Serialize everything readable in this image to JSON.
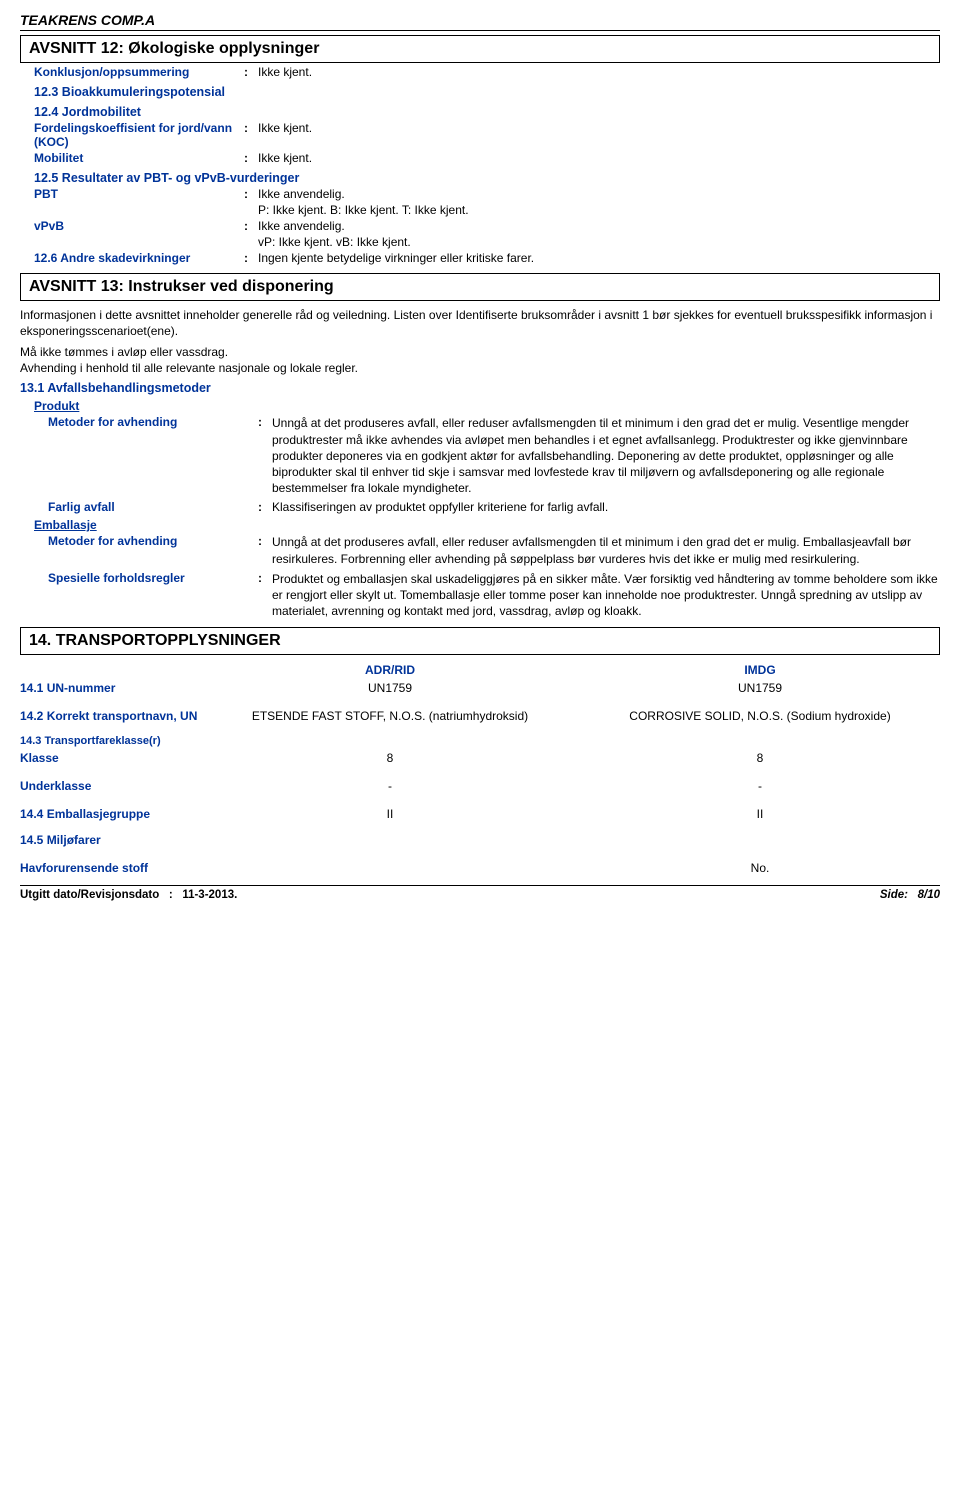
{
  "colors": {
    "blue": "#003399",
    "black": "#000000",
    "background": "#ffffff"
  },
  "typography": {
    "base_family": "Arial",
    "base_size_pt": 9,
    "heading_size_pt": 12
  },
  "product_title": "TEAKRENS COMP.A",
  "section12": {
    "heading": "AVSNITT 12: Økologiske opplysninger",
    "items": {
      "conclusion_label": "Konklusjon/oppsummering",
      "conclusion_value": "Ikke kjent.",
      "bioacc_heading": "12.3 Bioakkumuleringspotensial",
      "mobility_heading": "12.4 Jordmobilitet",
      "partition_label": "Fordelingskoeffisient for jord/vann (KOC)",
      "partition_value": "Ikke kjent.",
      "mobility_label": "Mobilitet",
      "mobility_value": "Ikke kjent.",
      "pbt_heading": "12.5 Resultater av PBT- og vPvB-vurderinger",
      "pbt_label": "PBT",
      "pbt_value": "Ikke anvendelig.",
      "pbt_detail": "P: Ikke kjent. B: Ikke kjent. T: Ikke kjent.",
      "vpvb_label": "vPvB",
      "vpvb_value": "Ikke anvendelig.",
      "vpvb_detail": "vP: Ikke kjent. vB: Ikke kjent.",
      "other_label": "12.6 Andre skadevirkninger",
      "other_value": "Ingen kjente betydelige virkninger eller kritiske farer."
    }
  },
  "section13": {
    "heading": "AVSNITT 13: Instrukser ved disponering",
    "intro": "Informasjonen i dette avsnittet inneholder generelle råd og veiledning. Listen over Identifiserte bruksområder i avsnitt 1 bør sjekkes for eventuell bruksspesifikk informasjon i eksponeringsscenarioet(ene).",
    "note1": "Må ikke tømmes i avløp eller vassdrag.",
    "note2": "Avhending i henhold til alle relevante nasjonale og lokale regler.",
    "methods_heading": "13.1 Avfallsbehandlingsmetoder",
    "product_heading": "Produkt",
    "disposal_label": "Metoder for avhending",
    "disposal_product": "Unngå at det produseres avfall, eller reduser avfallsmengden til et minimum i den grad det er mulig. Vesentlige mengder produktrester må ikke avhendes via avløpet men behandles i et egnet avfallsanlegg. Produktrester og ikke gjenvinnbare produkter deponeres via en godkjent aktør for avfallsbehandling. Deponering av dette produktet, oppløsninger og alle biprodukter skal til enhver tid skje i samsvar med lovfestede krav til miljøvern og avfallsdeponering og alle regionale bestemmelser fra lokale myndigheter.",
    "hazwaste_label": "Farlig avfall",
    "hazwaste_value": "Klassifiseringen av produktet oppfyller kriteriene for farlig avfall.",
    "packaging_heading": "Emballasje",
    "disposal_packaging": "Unngå at det produseres avfall, eller reduser avfallsmengden til et minimum i den grad det er mulig. Emballasjeavfall bør resirkuleres. Forbrenning eller avhending på søppelplass bør vurderes hvis det ikke er mulig med resirkulering.",
    "precautions_label": "Spesielle forholdsregler",
    "precautions_value": "Produktet og emballasjen skal uskadeliggjøres på en sikker måte. Vær forsiktig ved håndtering av tomme beholdere som ikke er rengjort eller skylt ut. Tomemballasje eller tomme poser kan inneholde noe produktrester. Unngå spredning av utslipp av materialet, avrenning og kontakt med jord, vassdrag, avløp og kloakk."
  },
  "section14": {
    "heading": "14. TRANSPORTOPPLYSNINGER",
    "col_adr": "ADR/RID",
    "col_imdg": "IMDG",
    "un_label": "14.1 UN-nummer",
    "un_adr": "UN1759",
    "un_imdg": "UN1759",
    "name_label": "14.2 Korrekt transportnavn, UN",
    "name_adr": "ETSENDE FAST STOFF, N.O.S. (natriumhydroksid)",
    "name_imdg": "CORROSIVE SOLID, N.O.S. (Sodium hydroxide)",
    "class_heading": "14.3 Transportfareklasse(r)",
    "class_label": "Klasse",
    "class_adr": "8",
    "class_imdg": "8",
    "subclass_label": "Underklasse",
    "subclass_adr": "-",
    "subclass_imdg": "-",
    "pg_label": "14.4 Emballasjegruppe",
    "pg_adr": "II",
    "pg_imdg": "II",
    "envhaz_label": "14.5 Miljøfarer",
    "marinepoll_label": "Havforurensende stoff",
    "marinepoll_imdg": "No."
  },
  "footer": {
    "date_label": "Utgitt dato/Revisjonsdato",
    "date_value": "11-3-2013.",
    "page_label": "Side:",
    "page_value": "8/10"
  }
}
